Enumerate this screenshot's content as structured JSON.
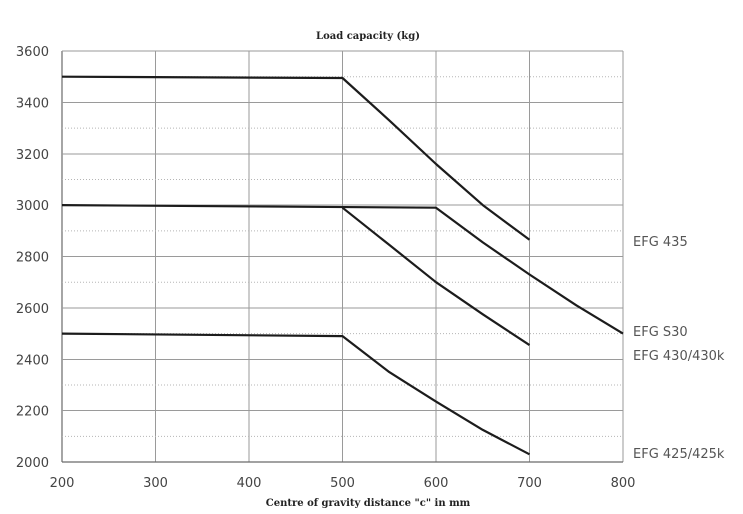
{
  "chart_data": {
    "type": "line",
    "title": "Load capacity (kg)",
    "xlabel": "Centre of gravity distance \"c\" in mm",
    "ylabel": "",
    "xlim": [
      200,
      800
    ],
    "ylim": [
      2000,
      3600
    ],
    "xticks": [
      200,
      300,
      400,
      500,
      600,
      700,
      800
    ],
    "yticks": [
      2000,
      2200,
      2400,
      2600,
      2800,
      3000,
      3200,
      3400,
      3600
    ],
    "xtick_labels": [
      "200",
      "300",
      "400",
      "500",
      "600",
      "700",
      "800"
    ],
    "ytick_labels": [
      "2000",
      "2200",
      "2400",
      "2600",
      "2800",
      "3000",
      "3200",
      "3400",
      "3600"
    ],
    "grid": true,
    "legend": "right, inline labels",
    "line_color": "#1c1c1c",
    "series": [
      {
        "name": "EFG 435",
        "x": [
          200,
          500,
          550,
          600,
          650,
          700
        ],
        "y": [
          3500,
          3495,
          3330,
          3160,
          3000,
          2865
        ]
      },
      {
        "name": "EFG S30",
        "x": [
          200,
          600,
          650,
          700,
          750,
          800
        ],
        "y": [
          3000,
          2990,
          2855,
          2730,
          2610,
          2500
        ]
      },
      {
        "name": "EFG 430/430k",
        "x": [
          500,
          550,
          600,
          650,
          700
        ],
        "y": [
          2990,
          2845,
          2700,
          2575,
          2455
        ]
      },
      {
        "name": "EFG 425/425k",
        "x": [
          200,
          500,
          550,
          600,
          650,
          700
        ],
        "y": [
          2500,
          2490,
          2350,
          2235,
          2125,
          2030
        ]
      }
    ]
  }
}
